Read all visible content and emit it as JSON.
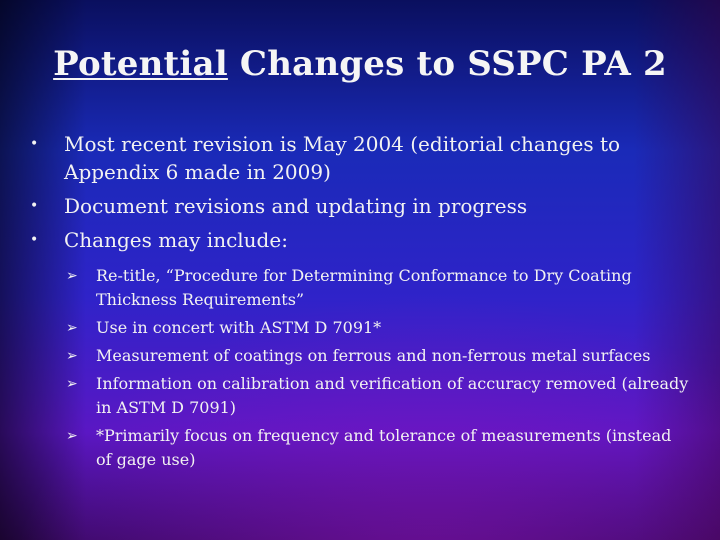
{
  "slide": {
    "title_underlined": "Potential",
    "title_rest": " Changes to SSPC PA 2",
    "bullets": [
      "Most recent revision is May 2004 (editorial changes to Appendix 6 made in 2009)",
      "Document revisions and updating in progress",
      "Changes may include:"
    ],
    "sub_bullets": [
      "Re-title, “Procedure for Determining Conformance to Dry Coating Thickness Requirements”",
      "Use in concert with ASTM D 7091*",
      "Measurement of coatings on ferrous and non-ferrous metal surfaces",
      "Information on calibration and verification of accuracy removed (already in ASTM D 7091)",
      "*Primarily focus on frequency and tolerance of measurements (instead of gage use)"
    ],
    "bullet_icon": "bullet-dot",
    "sub_bullet_icon": "arrow-bullet"
  }
}
